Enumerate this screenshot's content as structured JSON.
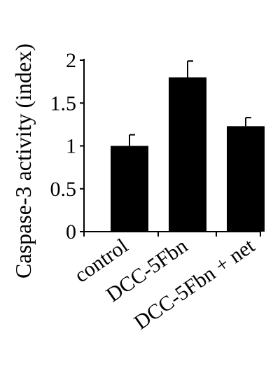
{
  "chart_data": {
    "type": "bar",
    "title": "",
    "xlabel": "",
    "ylabel": "Caspase-3 activity (index)",
    "categories": [
      "control",
      "DCC-5Fbn",
      "DCC-5Fbn + net"
    ],
    "values": [
      1.0,
      1.8,
      1.23
    ],
    "errors": [
      0.13,
      0.19,
      0.1
    ],
    "ylim": [
      0,
      2
    ],
    "yticks": [
      0,
      0.5,
      1,
      1.5,
      2
    ],
    "ytick_labels": [
      "0",
      "0.5",
      "1",
      "1.5",
      "2"
    ],
    "bar_color": "#000000",
    "grid": false,
    "legend": "none"
  }
}
